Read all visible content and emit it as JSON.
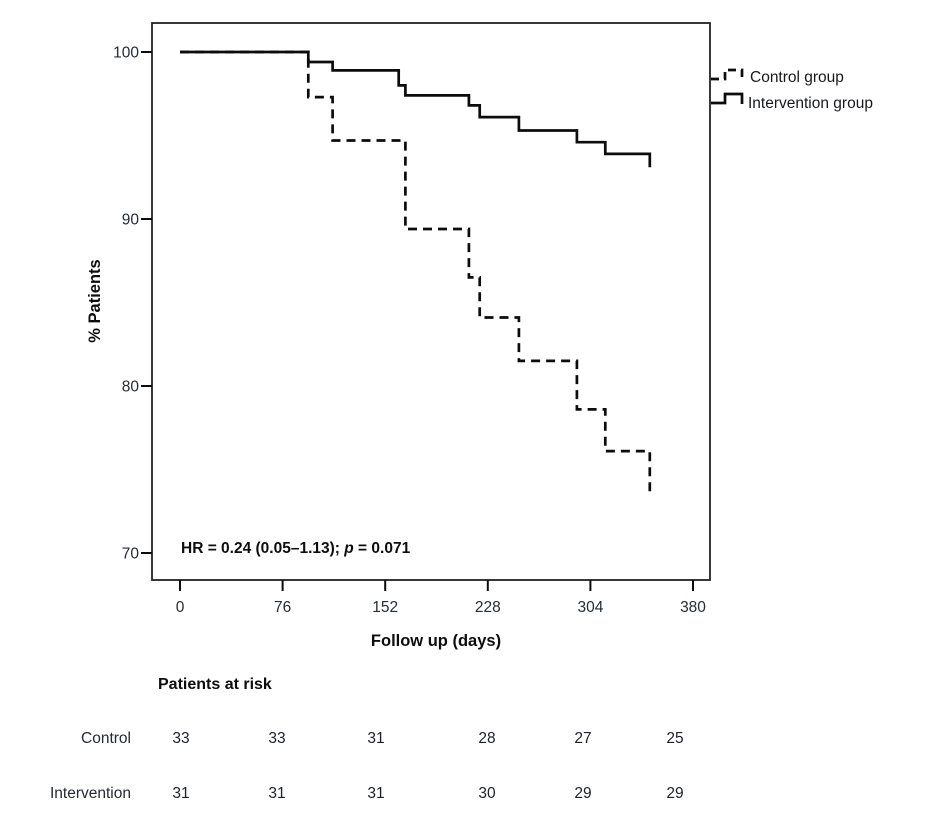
{
  "figure": {
    "background": "#ffffff",
    "line_color": "#0c0c0c",
    "text_color": "#17191d"
  },
  "chart_data": {
    "type": "line",
    "subtype": "kaplan-meier-step",
    "title": "",
    "xlabel": "Follow up (days)",
    "ylabel": "% Patients",
    "xlim": [
      0,
      380
    ],
    "ylim": [
      70,
      100
    ],
    "x_ticks": [
      0,
      76,
      152,
      228,
      304,
      380
    ],
    "y_ticks": [
      100,
      90,
      80,
      70
    ],
    "grid": false,
    "legend_position": "outside-right-top",
    "series": [
      {
        "name": "Control group",
        "line_style": "dashed",
        "x": [
          0,
          95,
          113,
          167,
          214,
          222,
          251,
          294,
          315,
          348
        ],
        "y": [
          100,
          97.3,
          94.7,
          89.4,
          86.5,
          84.1,
          81.5,
          78.6,
          76.1,
          73.6
        ]
      },
      {
        "name": "Intervention group",
        "line_style": "solid",
        "x": [
          0,
          95,
          113,
          162,
          167,
          214,
          222,
          251,
          294,
          315,
          348
        ],
        "y": [
          100,
          99.4,
          98.9,
          98.0,
          97.4,
          96.8,
          96.1,
          95.3,
          94.6,
          93.9,
          93.1
        ]
      }
    ],
    "annotation": {
      "full_text": "HR = 0.24 (0.05–1.13); p = 0.071",
      "hr_part": "HR = 0.24 (0.05–1.13); ",
      "p_symbol": "p",
      "value_part": " = 0.071"
    }
  },
  "at_risk_table": {
    "title": "Patients at risk",
    "columns_days": [
      0,
      76,
      152,
      228,
      304,
      380
    ],
    "rows": [
      {
        "label": "Control",
        "values": [
          33,
          33,
          31,
          28,
          27,
          25
        ]
      },
      {
        "label": "Intervention",
        "values": [
          31,
          31,
          31,
          30,
          29,
          29
        ]
      }
    ]
  }
}
